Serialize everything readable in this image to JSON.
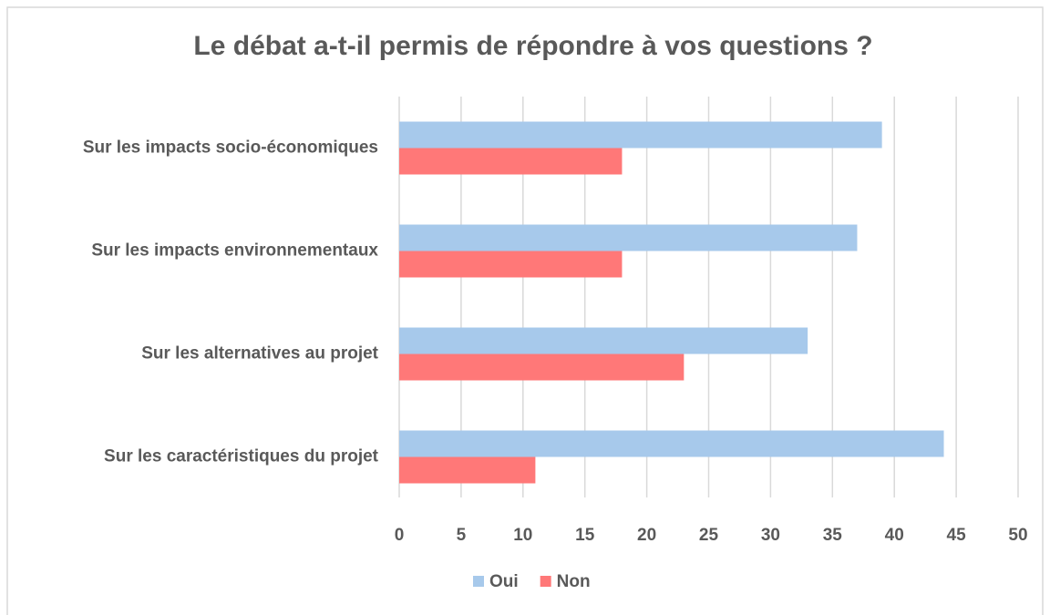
{
  "chart_data": {
    "type": "hbar",
    "title": "Le débat a-t-il permis de répondre à vos questions ?",
    "categories": [
      "Sur les impacts socio-économiques",
      "Sur les impacts environnementaux",
      "Sur les alternatives au projet",
      "Sur les caractéristiques du projet"
    ],
    "series": [
      {
        "name": "Oui",
        "color": "#a7c9eb",
        "values": [
          39,
          37,
          33,
          44
        ]
      },
      {
        "name": "Non",
        "color": "#ff7878",
        "values": [
          18,
          18,
          23,
          11
        ]
      }
    ],
    "xlim": [
      0,
      50
    ],
    "xticks": [
      0,
      5,
      10,
      15,
      20,
      25,
      30,
      35,
      40,
      45,
      50
    ],
    "grid": true,
    "legend": "bottom"
  }
}
